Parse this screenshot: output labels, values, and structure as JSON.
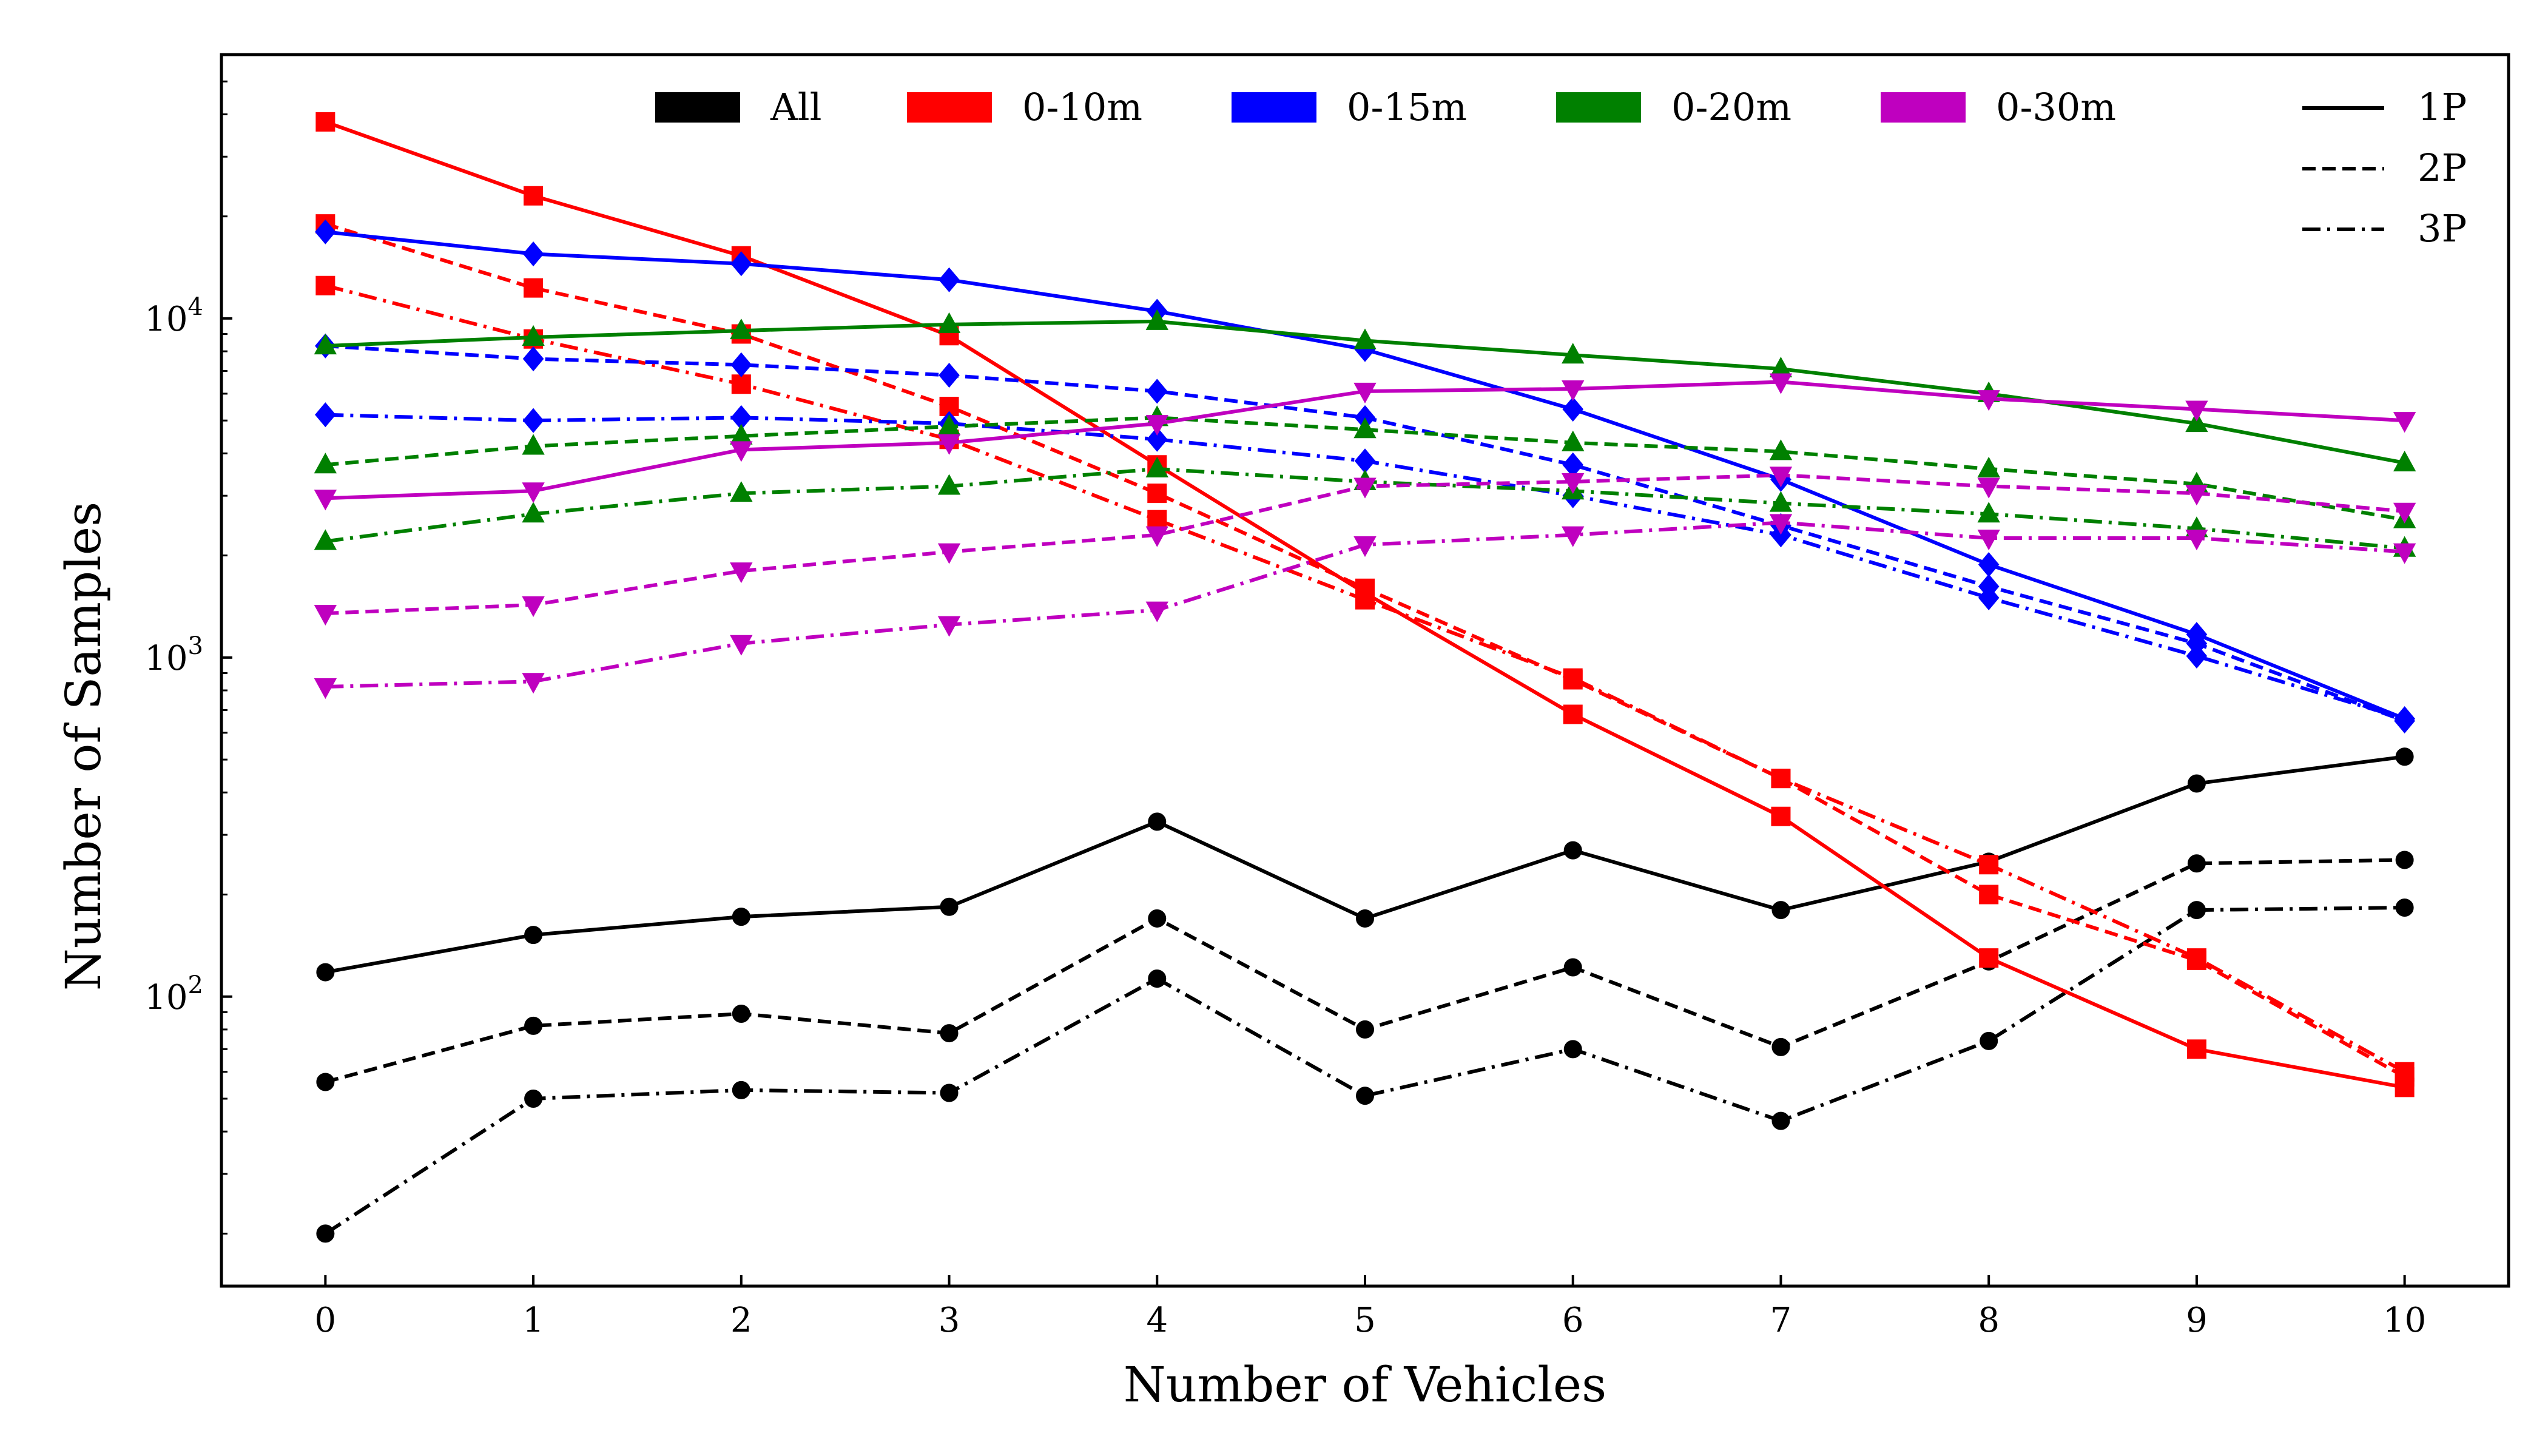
{
  "chart_data": {
    "type": "line",
    "title": "",
    "xlabel": "Number of Vehicles",
    "ylabel": "Number of Samples",
    "x": [
      0,
      1,
      2,
      3,
      4,
      5,
      6,
      7,
      8,
      9,
      10
    ],
    "x_ticks": [
      "0",
      "1",
      "2",
      "3",
      "4",
      "5",
      "6",
      "7",
      "8",
      "9",
      "10"
    ],
    "y_scale": "log",
    "ylim": [
      14,
      60000
    ],
    "y_ticks": [
      {
        "value": 100,
        "base": "10",
        "exp": "2"
      },
      {
        "value": 1000,
        "base": "10",
        "exp": "3"
      },
      {
        "value": 10000,
        "base": "10",
        "exp": "4"
      }
    ],
    "legend_ranges": [
      {
        "label": "All",
        "color": "#000000"
      },
      {
        "label": "0-10m",
        "color": "#ff0000"
      },
      {
        "label": "0-15m",
        "color": "#0000ff"
      },
      {
        "label": "0-20m",
        "color": "#008000"
      },
      {
        "label": "0-30m",
        "color": "#bf00bf"
      }
    ],
    "legend_styles": [
      {
        "label": "1P",
        "style": "solid"
      },
      {
        "label": "2P",
        "style": "dashed"
      },
      {
        "label": "3P",
        "style": "dashdot"
      }
    ],
    "series": [
      {
        "name": "All 1P",
        "range": "All",
        "style": "solid",
        "marker": "circle",
        "color": "#000000",
        "values": [
          118,
          152,
          172,
          184,
          328,
          170,
          270,
          180,
          250,
          425,
          510
        ]
      },
      {
        "name": "All 2P",
        "range": "All",
        "style": "dashed",
        "marker": "circle",
        "color": "#000000",
        "values": [
          56,
          82,
          89,
          78,
          170,
          80,
          122,
          71,
          127,
          247,
          253
        ]
      },
      {
        "name": "All 3P",
        "range": "All",
        "style": "dashdot",
        "marker": "circle",
        "color": "#000000",
        "values": [
          20,
          50,
          53,
          52,
          113,
          51,
          70,
          43,
          74,
          180,
          183
        ]
      },
      {
        "name": "0-10m 1P",
        "range": "0-10m",
        "style": "solid",
        "marker": "square",
        "color": "#ff0000",
        "values": [
          38000,
          23000,
          15300,
          8900,
          3700,
          1550,
          680,
          340,
          130,
          70,
          54
        ]
      },
      {
        "name": "0-10m 2P",
        "range": "0-10m",
        "style": "dashed",
        "marker": "square",
        "color": "#ff0000",
        "values": [
          19000,
          12300,
          9000,
          5500,
          3050,
          1600,
          860,
          440,
          200,
          128,
          58
        ]
      },
      {
        "name": "0-10m 3P",
        "range": "0-10m",
        "style": "dashdot",
        "marker": "square",
        "color": "#ff0000",
        "values": [
          12500,
          8700,
          6400,
          4400,
          2550,
          1480,
          870,
          440,
          245,
          130,
          60
        ]
      },
      {
        "name": "0-15m 1P",
        "range": "0-15m",
        "style": "solid",
        "marker": "diamond",
        "color": "#0000ff",
        "values": [
          18000,
          15500,
          14500,
          13000,
          10500,
          8100,
          5400,
          3350,
          1880,
          1170,
          660
        ]
      },
      {
        "name": "0-15m 2P",
        "range": "0-15m",
        "style": "dashed",
        "marker": "diamond",
        "color": "#0000ff",
        "values": [
          8300,
          7600,
          7300,
          6800,
          6100,
          5100,
          3700,
          2450,
          1620,
          1100,
          650
        ]
      },
      {
        "name": "0-15m 3P",
        "range": "0-15m",
        "style": "dashdot",
        "marker": "diamond",
        "color": "#0000ff",
        "values": [
          5200,
          5000,
          5100,
          4900,
          4400,
          3800,
          3000,
          2300,
          1500,
          1010,
          660
        ]
      },
      {
        "name": "0-20m 1P",
        "range": "0-20m",
        "style": "solid",
        "marker": "triangle-up",
        "color": "#008000",
        "values": [
          8300,
          8800,
          9200,
          9600,
          9800,
          8600,
          7800,
          7100,
          6000,
          4900,
          3750
        ]
      },
      {
        "name": "0-20m 2P",
        "range": "0-20m",
        "style": "dashed",
        "marker": "triangle-up",
        "color": "#008000",
        "values": [
          3700,
          4200,
          4500,
          4800,
          5100,
          4700,
          4300,
          4050,
          3600,
          3250,
          2550
        ]
      },
      {
        "name": "0-20m 3P",
        "range": "0-20m",
        "style": "dashdot",
        "marker": "triangle-up",
        "color": "#008000",
        "values": [
          2200,
          2650,
          3050,
          3200,
          3600,
          3300,
          3100,
          2850,
          2650,
          2400,
          2100
        ]
      },
      {
        "name": "0-30m 1P",
        "range": "0-30m",
        "style": "solid",
        "marker": "triangle-down",
        "color": "#bf00bf",
        "values": [
          2950,
          3100,
          4100,
          4300,
          4900,
          6100,
          6200,
          6500,
          5800,
          5400,
          5000
        ]
      },
      {
        "name": "0-30m 2P",
        "range": "0-30m",
        "style": "dashed",
        "marker": "triangle-down",
        "color": "#bf00bf",
        "values": [
          1350,
          1430,
          1800,
          2050,
          2300,
          3200,
          3300,
          3450,
          3200,
          3050,
          2700
        ]
      },
      {
        "name": "0-30m 3P",
        "range": "0-30m",
        "style": "dashdot",
        "marker": "triangle-down",
        "color": "#bf00bf",
        "values": [
          820,
          850,
          1100,
          1250,
          1380,
          2150,
          2300,
          2500,
          2250,
          2250,
          2050
        ]
      }
    ]
  }
}
